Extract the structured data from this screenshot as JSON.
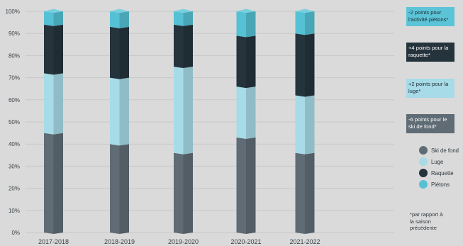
{
  "chart_data": {
    "type": "bar",
    "stacked": true,
    "categories": [
      "2017-2018",
      "2018-2019",
      "2019-2020",
      "2020-2021",
      "2021-2022"
    ],
    "series": [
      {
        "name": "Ski de fond",
        "values": [
          45,
          40,
          36,
          43,
          36
        ],
        "color": "#5f6c75"
      },
      {
        "name": "Luge",
        "values": [
          27,
          30,
          39,
          23,
          26
        ],
        "color": "#a7dbe7"
      },
      {
        "name": "Raquette",
        "values": [
          22,
          23,
          19,
          23,
          28
        ],
        "color": "#25333c"
      },
      {
        "name": "Piétons",
        "values": [
          6,
          7,
          6,
          11,
          10
        ],
        "color": "#55c1d4"
      }
    ],
    "ylim": [
      0,
      100
    ],
    "yticks": [
      0,
      10,
      20,
      30,
      40,
      50,
      60,
      70,
      80,
      90,
      100
    ],
    "ytick_labels": [
      "0%",
      "10%",
      "20%",
      "30%",
      "40%",
      "50%",
      "60%",
      "70%",
      "80%",
      "90%",
      "100%"
    ],
    "grid": true,
    "legend": "right"
  },
  "annotations": [
    {
      "text": "-2 points pour l'activité piétons*",
      "bg": "#5bc4d7",
      "fg": "#1f2a31"
    },
    {
      "text": "+4 points pour la raquette*",
      "bg": "#25333c",
      "fg": "#ffffff"
    },
    {
      "text": "+2 points pour la luge*",
      "bg": "#a7dbe7",
      "fg": "#1f2a31"
    },
    {
      "text": "-6 points pour le ski de fond*",
      "bg": "#5f6c75",
      "fg": "#ffffff"
    }
  ],
  "footnote": "*par rapport à la saison précédente"
}
